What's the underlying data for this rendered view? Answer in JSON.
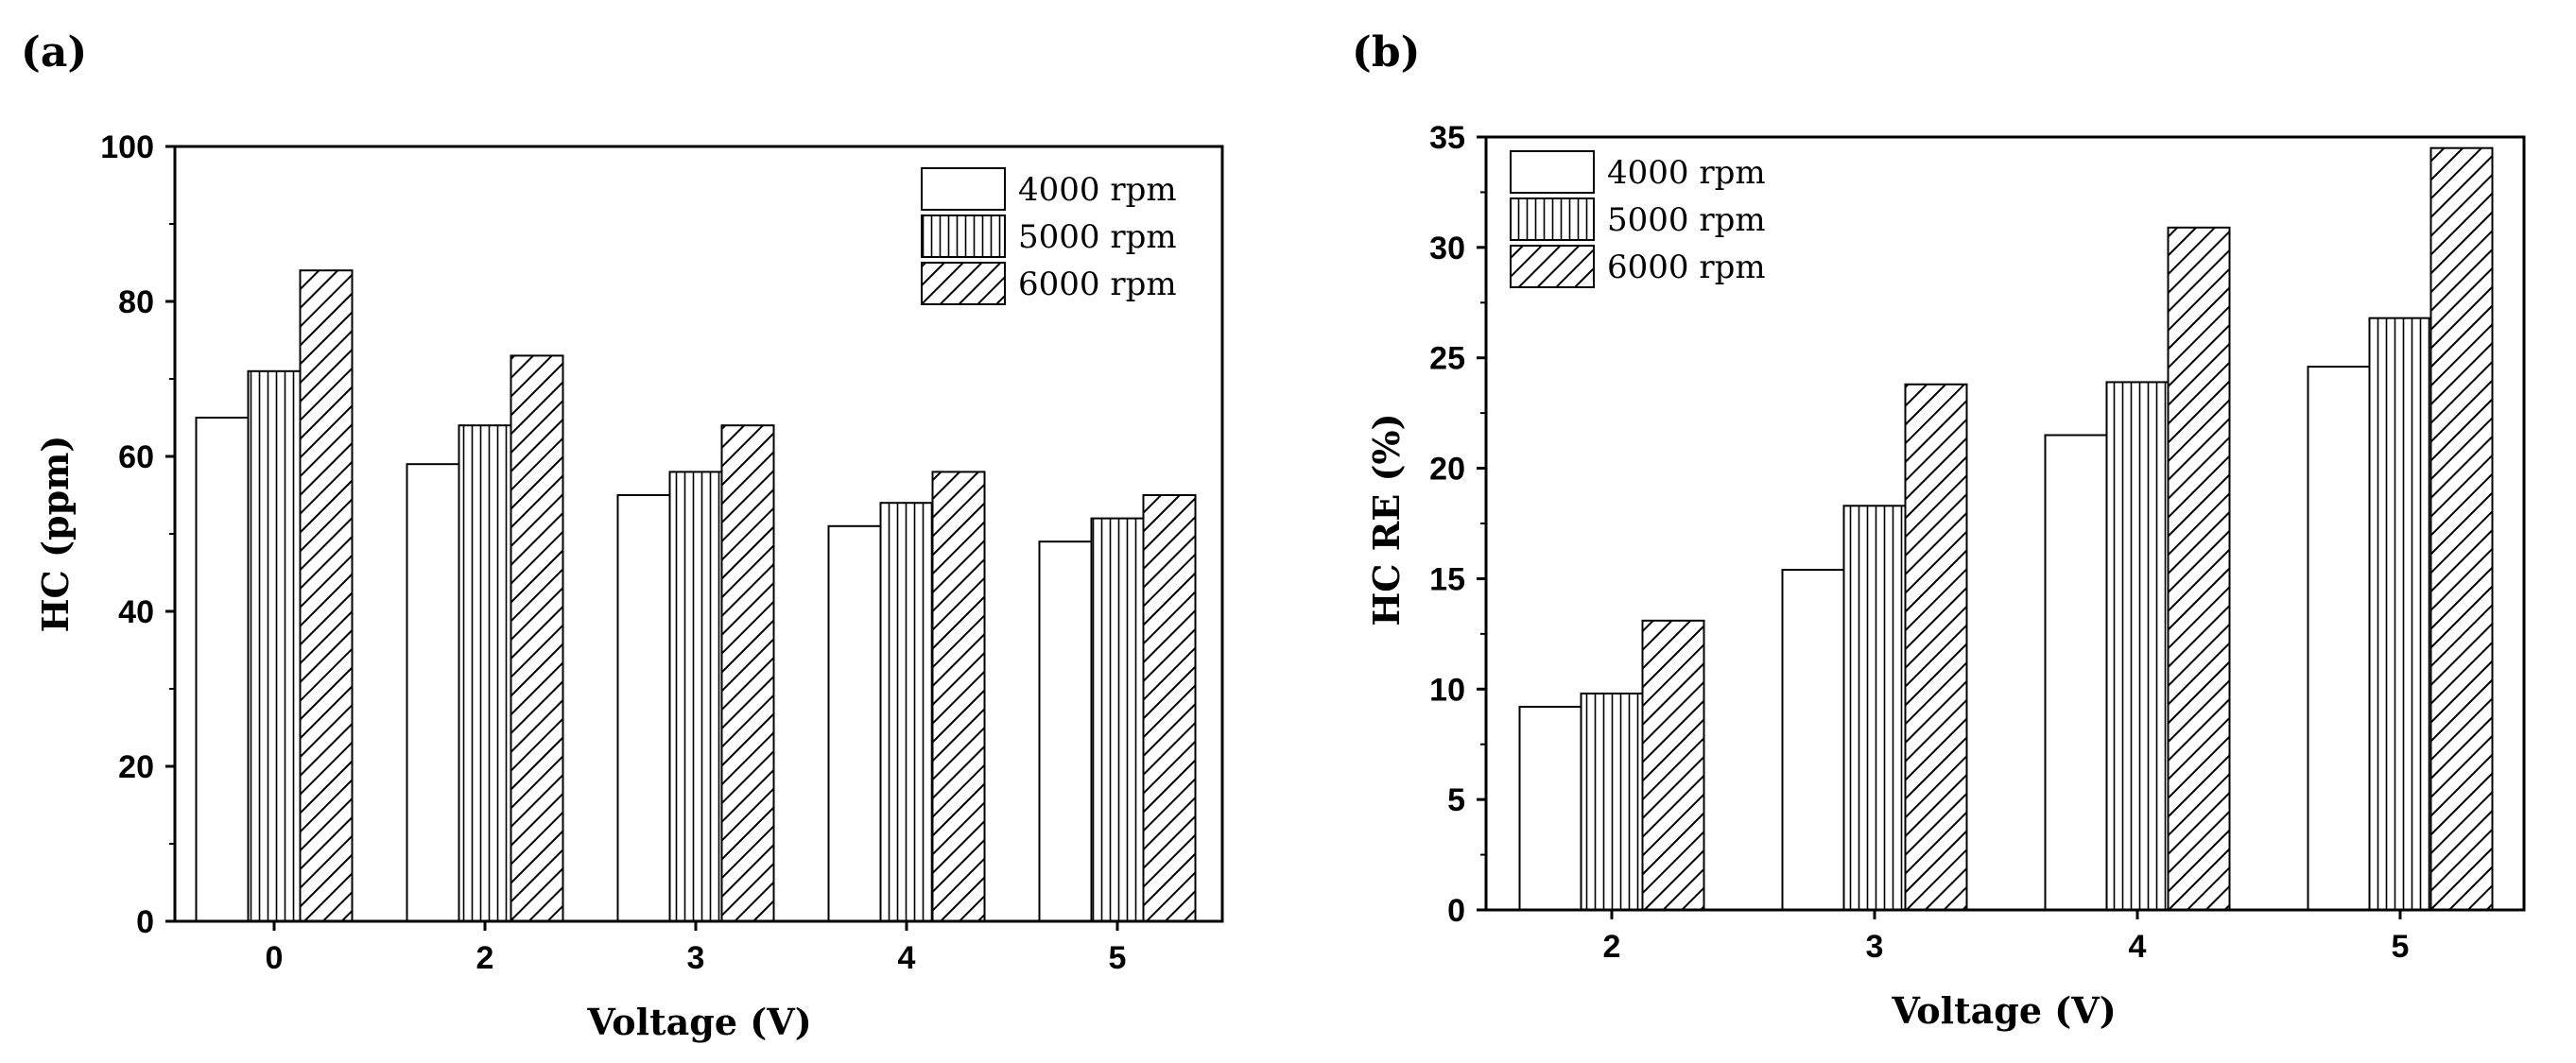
{
  "patterns": [
    "blank",
    "vertical",
    "diagonal"
  ],
  "chart_data": [
    {
      "type": "bar",
      "panel": "(a)",
      "xlabel": "Voltage (V)",
      "ylabel": "HC (ppm)",
      "categories": [
        "0",
        "2",
        "3",
        "4",
        "5"
      ],
      "ylim": [
        0,
        100
      ],
      "yticks": [
        "0",
        "20",
        "40",
        "60",
        "80",
        "100"
      ],
      "legend_position": "top-right",
      "series": [
        {
          "name": "4000 rpm",
          "values": [
            65,
            59,
            55,
            51,
            49
          ]
        },
        {
          "name": "5000 rpm",
          "values": [
            71,
            64,
            58,
            54,
            52
          ]
        },
        {
          "name": "6000 rpm",
          "values": [
            84,
            73,
            64,
            58,
            55
          ]
        }
      ]
    },
    {
      "type": "bar",
      "panel": "(b)",
      "xlabel": "Voltage (V)",
      "ylabel": "HC RE (%)",
      "categories": [
        "2",
        "3",
        "4",
        "5"
      ],
      "ylim": [
        0,
        35
      ],
      "yticks": [
        "0",
        "5",
        "10",
        "15",
        "20",
        "25",
        "30",
        "35"
      ],
      "legend_position": "top-left",
      "series": [
        {
          "name": "4000 rpm",
          "values": [
            9.2,
            15.4,
            21.5,
            24.6
          ]
        },
        {
          "name": "5000 rpm",
          "values": [
            9.8,
            18.3,
            23.9,
            26.8
          ]
        },
        {
          "name": "6000 rpm",
          "values": [
            13.1,
            23.8,
            30.9,
            34.5
          ]
        }
      ]
    }
  ]
}
